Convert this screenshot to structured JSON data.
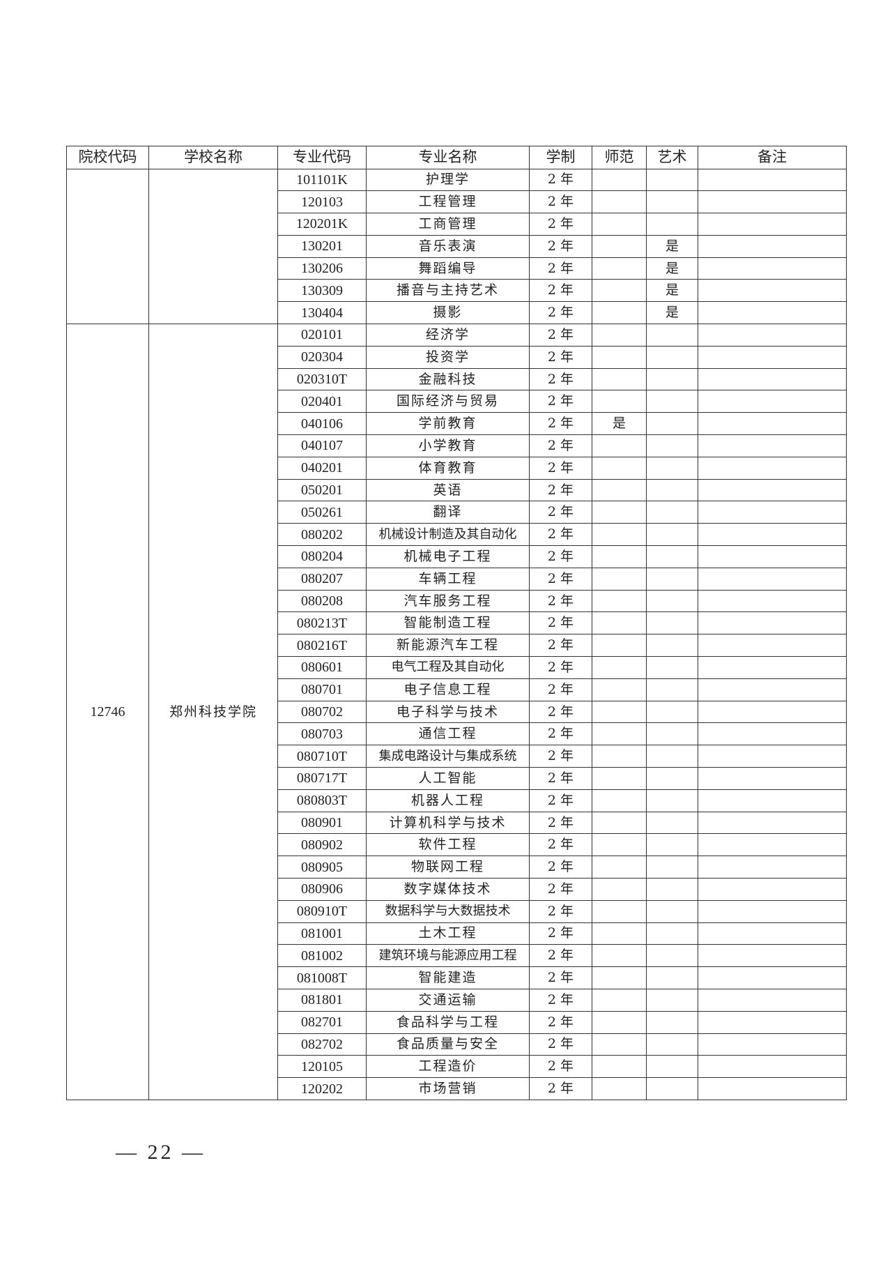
{
  "table": {
    "headers": [
      "院校代码",
      "学校名称",
      "专业代码",
      "专业名称",
      "学制",
      "师范",
      "艺术",
      "备注"
    ],
    "groups": [
      {
        "school_code": "",
        "school_name": "",
        "rows": [
          [
            "101101K",
            "护理学",
            "2 年",
            "",
            "",
            ""
          ],
          [
            "120103",
            "工程管理",
            "2 年",
            "",
            "",
            ""
          ],
          [
            "120201K",
            "工商管理",
            "2 年",
            "",
            "",
            ""
          ],
          [
            "130201",
            "音乐表演",
            "2 年",
            "",
            "是",
            ""
          ],
          [
            "130206",
            "舞蹈编导",
            "2 年",
            "",
            "是",
            ""
          ],
          [
            "130309",
            "播音与主持艺术",
            "2 年",
            "",
            "是",
            ""
          ],
          [
            "130404",
            "摄影",
            "2 年",
            "",
            "是",
            ""
          ]
        ]
      },
      {
        "school_code": "12746",
        "school_name": "郑州科技学院",
        "rows": [
          [
            "020101",
            "经济学",
            "2 年",
            "",
            "",
            ""
          ],
          [
            "020304",
            "投资学",
            "2 年",
            "",
            "",
            ""
          ],
          [
            "020310T",
            "金融科技",
            "2 年",
            "",
            "",
            ""
          ],
          [
            "020401",
            "国际经济与贸易",
            "2 年",
            "",
            "",
            ""
          ],
          [
            "040106",
            "学前教育",
            "2 年",
            "是",
            "",
            ""
          ],
          [
            "040107",
            "小学教育",
            "2 年",
            "",
            "",
            ""
          ],
          [
            "040201",
            "体育教育",
            "2 年",
            "",
            "",
            ""
          ],
          [
            "050201",
            "英语",
            "2 年",
            "",
            "",
            ""
          ],
          [
            "050261",
            "翻译",
            "2 年",
            "",
            "",
            ""
          ],
          [
            "080202",
            "机械设计制造及其自动化",
            "2 年",
            "",
            "",
            ""
          ],
          [
            "080204",
            "机械电子工程",
            "2 年",
            "",
            "",
            ""
          ],
          [
            "080207",
            "车辆工程",
            "2 年",
            "",
            "",
            ""
          ],
          [
            "080208",
            "汽车服务工程",
            "2 年",
            "",
            "",
            ""
          ],
          [
            "080213T",
            "智能制造工程",
            "2 年",
            "",
            "",
            ""
          ],
          [
            "080216T",
            "新能源汽车工程",
            "2 年",
            "",
            "",
            ""
          ],
          [
            "080601",
            "电气工程及其自动化",
            "2 年",
            "",
            "",
            ""
          ],
          [
            "080701",
            "电子信息工程",
            "2 年",
            "",
            "",
            ""
          ],
          [
            "080702",
            "电子科学与技术",
            "2 年",
            "",
            "",
            ""
          ],
          [
            "080703",
            "通信工程",
            "2 年",
            "",
            "",
            ""
          ],
          [
            "080710T",
            "集成电路设计与集成系统",
            "2 年",
            "",
            "",
            ""
          ],
          [
            "080717T",
            "人工智能",
            "2 年",
            "",
            "",
            ""
          ],
          [
            "080803T",
            "机器人工程",
            "2 年",
            "",
            "",
            ""
          ],
          [
            "080901",
            "计算机科学与技术",
            "2 年",
            "",
            "",
            ""
          ],
          [
            "080902",
            "软件工程",
            "2 年",
            "",
            "",
            ""
          ],
          [
            "080905",
            "物联网工程",
            "2 年",
            "",
            "",
            ""
          ],
          [
            "080906",
            "数字媒体技术",
            "2 年",
            "",
            "",
            ""
          ],
          [
            "080910T",
            "数据科学与大数据技术",
            "2 年",
            "",
            "",
            ""
          ],
          [
            "081001",
            "土木工程",
            "2 年",
            "",
            "",
            ""
          ],
          [
            "081002",
            "建筑环境与能源应用工程",
            "2 年",
            "",
            "",
            ""
          ],
          [
            "081008T",
            "智能建造",
            "2 年",
            "",
            "",
            ""
          ],
          [
            "081801",
            "交通运输",
            "2 年",
            "",
            "",
            ""
          ],
          [
            "082701",
            "食品科学与工程",
            "2 年",
            "",
            "",
            ""
          ],
          [
            "082702",
            "食品质量与安全",
            "2 年",
            "",
            "",
            ""
          ],
          [
            "120105",
            "工程造价",
            "2 年",
            "",
            "",
            ""
          ],
          [
            "120202",
            "市场营销",
            "2 年",
            "",
            "",
            ""
          ]
        ]
      }
    ]
  },
  "footer": {
    "page_number": "— 22 —"
  }
}
